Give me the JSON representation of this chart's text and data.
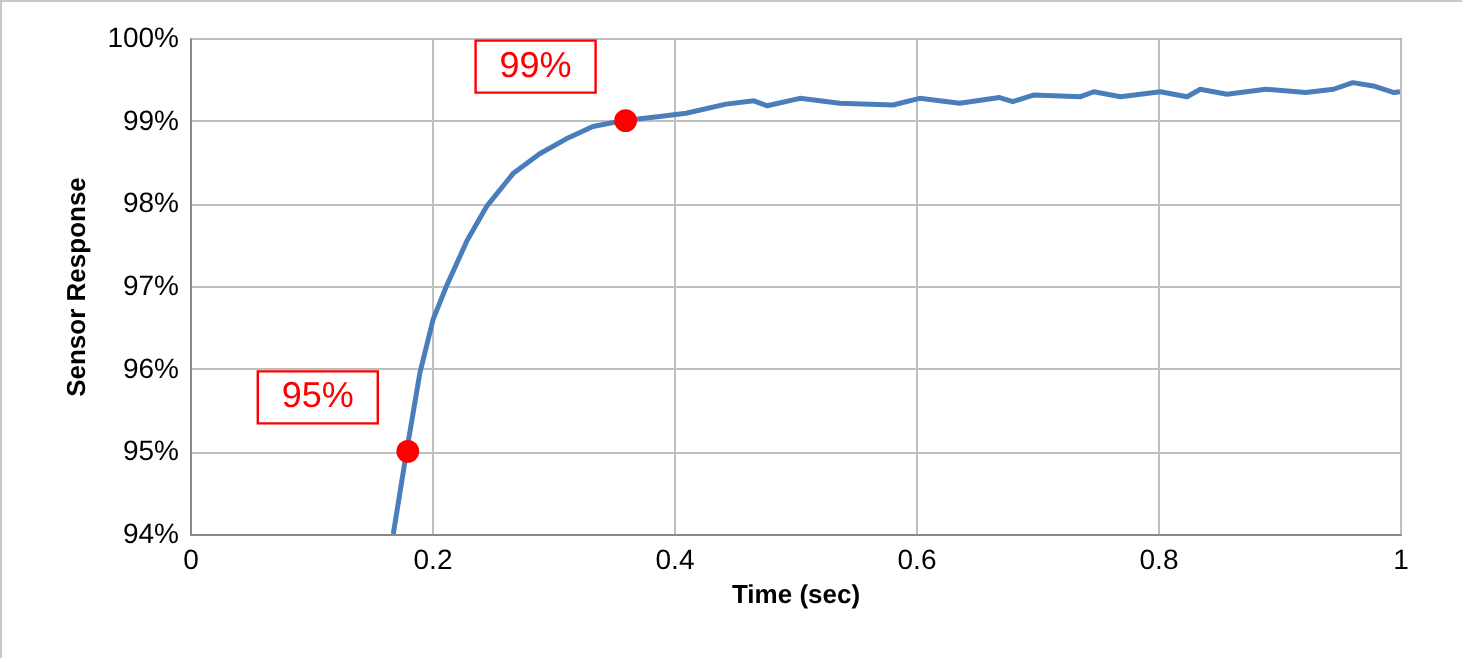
{
  "chart_data": {
    "type": "line",
    "xlabel": "Time (sec)",
    "ylabel": "Sensor Response",
    "xlim": [
      0,
      1
    ],
    "xticks": [
      0,
      0.2,
      0.4,
      0.6,
      0.8,
      1
    ],
    "ylim": [
      94,
      100
    ],
    "yticks": [
      {
        "value": 94,
        "label": "94%"
      },
      {
        "value": 95,
        "label": "95%"
      },
      {
        "value": 96,
        "label": "96%"
      },
      {
        "value": 97,
        "label": "97%"
      },
      {
        "value": 98,
        "label": "98%"
      },
      {
        "value": 99,
        "label": "99%"
      },
      {
        "value": 100,
        "label": "100%"
      }
    ],
    "grid": true,
    "series": [
      {
        "color": "#4a7ebb",
        "marker": "none",
        "x": [
          0.168,
          0.179,
          0.19,
          0.201,
          0.212,
          0.229,
          0.245,
          0.267,
          0.289,
          0.311,
          0.333,
          0.358,
          0.388,
          0.41,
          0.443,
          0.466,
          0.477,
          0.504,
          0.537,
          0.581,
          0.603,
          0.636,
          0.669,
          0.68,
          0.697,
          0.736,
          0.747,
          0.769,
          0.802,
          0.824,
          0.835,
          0.857,
          0.889,
          0.922,
          0.945,
          0.961,
          0.978,
          0.995,
          1.0
        ],
        "values": [
          94.0,
          95.0,
          95.95,
          96.6,
          97.0,
          97.55,
          97.96,
          98.36,
          98.6,
          98.78,
          98.93,
          99.0,
          99.05,
          99.09,
          99.2,
          99.24,
          99.18,
          99.27,
          99.21,
          99.19,
          99.27,
          99.21,
          99.28,
          99.23,
          99.31,
          99.29,
          99.35,
          99.29,
          99.35,
          99.29,
          99.38,
          99.32,
          99.38,
          99.34,
          99.38,
          99.46,
          99.42,
          99.34,
          99.35
        ]
      },
      {
        "type": "scatter",
        "color": "#ff0000",
        "marker": "circle",
        "x": [
          0.18,
          0.36
        ],
        "values": [
          95,
          99
        ]
      }
    ],
    "annotations": [
      {
        "text": "95%",
        "x": 0.18,
        "y": 95
      },
      {
        "text": "99%",
        "x": 0.36,
        "y": 99
      }
    ]
  }
}
